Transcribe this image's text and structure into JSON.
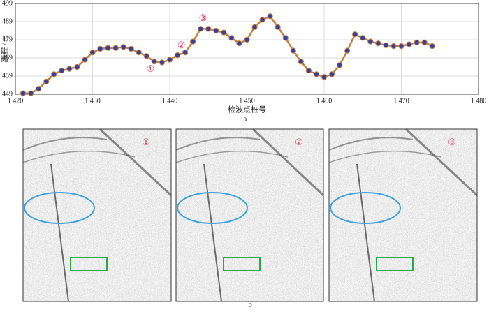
{
  "chart_data": {
    "type": "line",
    "x": [
      1421,
      1422,
      1423,
      1424,
      1425,
      1426,
      1427,
      1428,
      1429,
      1430,
      1431,
      1432,
      1433,
      1434,
      1435,
      1436,
      1437,
      1438,
      1439,
      1440,
      1441,
      1442,
      1443,
      1444,
      1445,
      1446,
      1447,
      1448,
      1449,
      1450,
      1451,
      1452,
      1453,
      1454,
      1455,
      1456,
      1457,
      1458,
      1459,
      1460,
      1461,
      1462,
      1463,
      1464,
      1465,
      1466,
      1467,
      1468,
      1469,
      1470,
      1471,
      1472,
      1473,
      1474
    ],
    "series": [
      {
        "color": "#c47f3c",
        "marker_color": "#3b3f9c",
        "values": [
          449.5,
          449.5,
          452,
          456,
          460,
          462,
          463,
          464,
          468,
          472,
          474,
          474.5,
          474.5,
          475,
          474,
          472,
          470,
          467,
          466.5,
          468,
          470.5,
          472,
          478,
          485,
          485,
          484,
          483,
          480,
          477,
          479,
          486,
          490,
          492,
          486,
          480,
          473,
          467,
          462,
          460,
          458.5,
          460,
          465,
          473,
          482,
          480,
          478,
          477,
          476,
          475.5,
          475.5,
          476.5,
          477.5,
          477.5,
          475.5
        ]
      }
    ],
    "xlim": [
      1420,
      1480
    ],
    "xticks": [
      {
        "value": 1420,
        "label": "1 420"
      },
      {
        "value": 1430,
        "label": "1 430"
      },
      {
        "value": 1440,
        "label": "1 440"
      },
      {
        "value": 1450,
        "label": "1 450"
      },
      {
        "value": 1460,
        "label": "1 460"
      },
      {
        "value": 1470,
        "label": "1 470"
      },
      {
        "value": 1480,
        "label": "1 480"
      }
    ],
    "ylim": [
      449,
      499
    ],
    "yticks": [
      449,
      459,
      469,
      479,
      489,
      499
    ],
    "x_label": "检波点桩号",
    "y_label": "高程 / m",
    "grid": true,
    "annotations": [
      {
        "text": "①",
        "x": 1437.5,
        "y": 462.5
      },
      {
        "text": "②",
        "x": 1441.5,
        "y": 475.5
      },
      {
        "text": "③",
        "x": 1444.3,
        "y": 490.5
      }
    ]
  },
  "figure": {
    "panel_a": "a",
    "panel_b": "b",
    "images": [
      {
        "label": "①"
      },
      {
        "label": "②"
      },
      {
        "label": "③"
      }
    ]
  }
}
